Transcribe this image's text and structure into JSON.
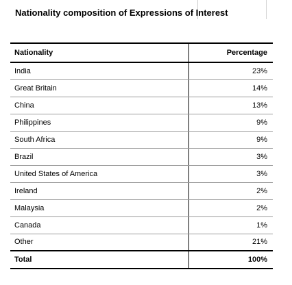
{
  "title": "Nationality composition of Expressions of Interest",
  "table": {
    "headers": {
      "nationality": "Nationality",
      "percentage": "Percentage"
    },
    "rows": [
      {
        "nationality": "India",
        "percentage": "23%"
      },
      {
        "nationality": "Great Britain",
        "percentage": "14%"
      },
      {
        "nationality": "China",
        "percentage": "13%"
      },
      {
        "nationality": "Philippines",
        "percentage": "9%"
      },
      {
        "nationality": "South Africa",
        "percentage": "9%"
      },
      {
        "nationality": "Brazil",
        "percentage": "3%"
      },
      {
        "nationality": "United States of America",
        "percentage": "3%"
      },
      {
        "nationality": "Ireland",
        "percentage": "2%"
      },
      {
        "nationality": "Malaysia",
        "percentage": "2%"
      },
      {
        "nationality": "Canada",
        "percentage": "1%"
      },
      {
        "nationality": "Other",
        "percentage": "21%"
      }
    ],
    "total": {
      "nationality": "Total",
      "percentage": "100%"
    }
  }
}
